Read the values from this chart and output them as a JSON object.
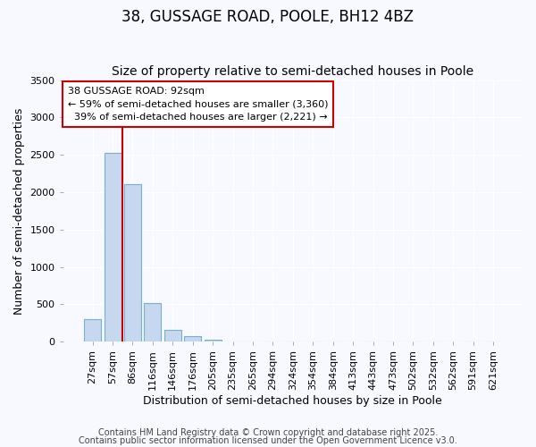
{
  "title": "38, GUSSAGE ROAD, POOLE, BH12 4BZ",
  "subtitle": "Size of property relative to semi-detached houses in Poole",
  "xlabel": "Distribution of semi-detached houses by size in Poole",
  "ylabel": "Number of semi-detached properties",
  "categories": [
    "27sqm",
    "57sqm",
    "86sqm",
    "116sqm",
    "146sqm",
    "176sqm",
    "205sqm",
    "235sqm",
    "265sqm",
    "294sqm",
    "324sqm",
    "354sqm",
    "384sqm",
    "413sqm",
    "443sqm",
    "473sqm",
    "502sqm",
    "532sqm",
    "562sqm",
    "591sqm",
    "621sqm"
  ],
  "values": [
    300,
    2530,
    2110,
    520,
    155,
    70,
    30,
    0,
    0,
    0,
    0,
    0,
    0,
    0,
    0,
    0,
    0,
    0,
    0,
    0,
    0
  ],
  "bar_color": "#c5d8f0",
  "bar_edge_color": "#7aadd4",
  "vline_x_index": 2,
  "vline_color": "#cc0000",
  "annotation_text": "38 GUSSAGE ROAD: 92sqm\n← 59% of semi-detached houses are smaller (3,360)\n  39% of semi-detached houses are larger (2,221) →",
  "annotation_box_color": "#cc0000",
  "ylim": [
    0,
    3500
  ],
  "yticks": [
    0,
    500,
    1000,
    1500,
    2000,
    2500,
    3000,
    3500
  ],
  "footer1": "Contains HM Land Registry data © Crown copyright and database right 2025.",
  "footer2": "Contains public sector information licensed under the Open Government Licence v3.0.",
  "bg_color": "#f7f9ff",
  "plot_bg_color": "#f7f9ff",
  "grid_color": "#ffffff",
  "title_fontsize": 12,
  "subtitle_fontsize": 10,
  "axis_label_fontsize": 9,
  "tick_fontsize": 8,
  "footer_fontsize": 7
}
